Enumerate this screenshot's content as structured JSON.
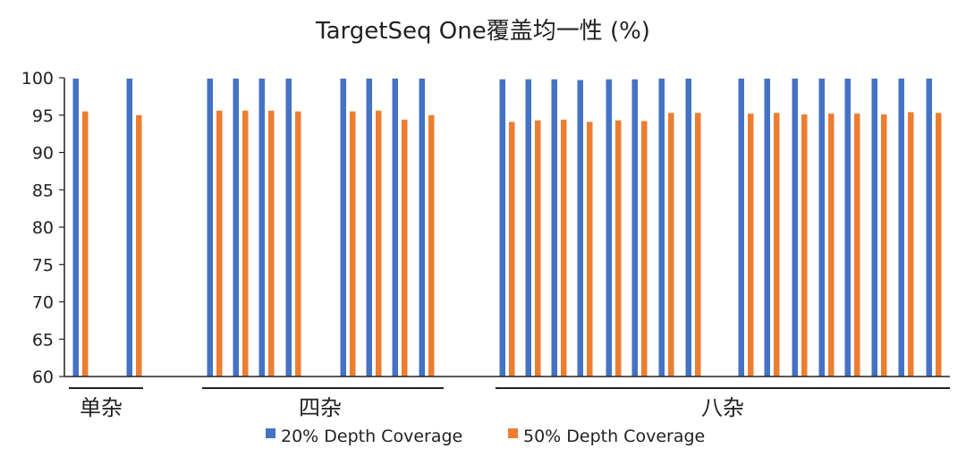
{
  "chart_data": {
    "type": "bar",
    "title": "TargetSeq One覆盖均一性 (%)",
    "xlabel": "",
    "ylabel": "",
    "ylim": [
      60,
      100
    ],
    "yticks": [
      100,
      95,
      90,
      85,
      80,
      75,
      70,
      65,
      60
    ],
    "grid": false,
    "legend_position": "bottom",
    "groups": [
      {
        "label": "单杂",
        "count": 2
      },
      {
        "label": "四杂",
        "count": 8
      },
      {
        "label": "八杂",
        "count": 16
      }
    ],
    "series": [
      {
        "name": "20% Depth Coverage",
        "color": "#4472C4",
        "values": [
          99.9,
          99.9,
          99.9,
          99.9,
          99.9,
          99.9,
          99.9,
          99.9,
          99.9,
          99.9,
          99.8,
          99.8,
          99.8,
          99.7,
          99.8,
          99.8,
          99.9,
          99.9,
          99.9,
          99.9,
          99.9,
          99.9,
          99.9,
          99.9,
          99.9,
          99.9
        ]
      },
      {
        "name": "50% Depth Coverage",
        "color": "#ED7D31",
        "values": [
          95.5,
          95.0,
          95.6,
          95.6,
          95.6,
          95.5,
          95.5,
          95.6,
          94.4,
          95.0,
          94.1,
          94.3,
          94.4,
          94.1,
          94.3,
          94.2,
          95.3,
          95.3,
          95.2,
          95.3,
          95.1,
          95.2,
          95.2,
          95.1,
          95.4,
          95.3
        ]
      }
    ]
  }
}
